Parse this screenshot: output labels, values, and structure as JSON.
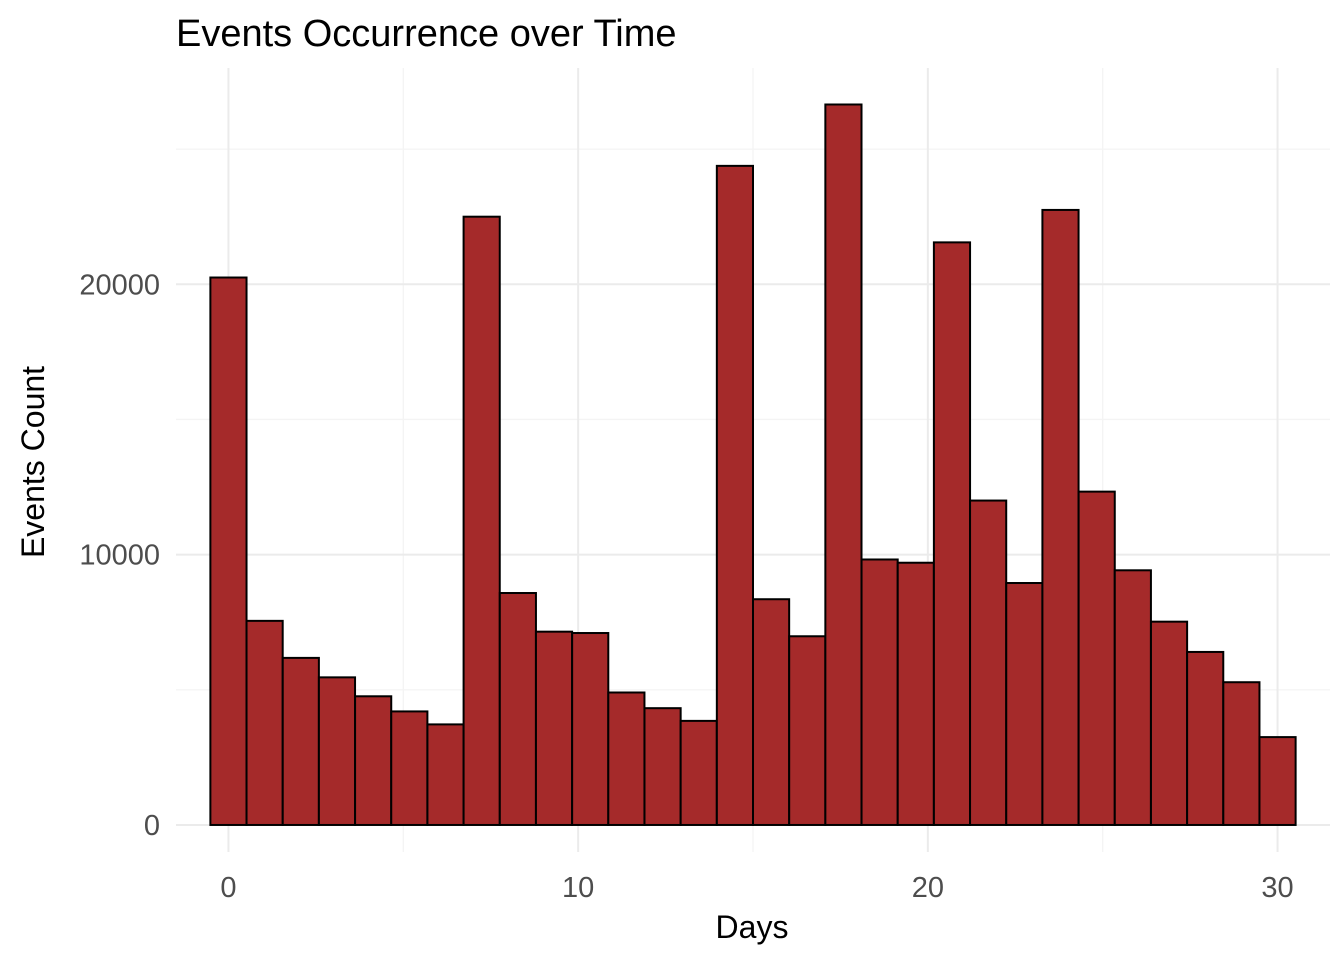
{
  "chart_data": {
    "type": "bar",
    "title": "Events Occurrence over Time",
    "xlabel": "Days",
    "ylabel": "Events Count",
    "bar_color": "#a52a2a",
    "bar_outline": "#000000",
    "bin_width": 1.034,
    "x": [
      0,
      1.034,
      2.069,
      3.103,
      4.138,
      5.172,
      6.207,
      7.241,
      8.276,
      9.31,
      10.345,
      11.379,
      12.414,
      13.448,
      14.483,
      15.517,
      16.552,
      17.586,
      18.621,
      19.655,
      20.69,
      21.724,
      22.759,
      23.793,
      24.828,
      25.862,
      26.897,
      27.931,
      28.966,
      30
    ],
    "values": [
      20250,
      7550,
      6180,
      5460,
      4760,
      4200,
      3720,
      22500,
      8580,
      7150,
      7100,
      4900,
      4320,
      3850,
      24380,
      8350,
      6980,
      26650,
      9820,
      9700,
      21550,
      12000,
      8950,
      22750,
      12330,
      9420,
      7520,
      6400,
      5280,
      3250
    ],
    "xlim": [
      -1.5,
      31.5
    ],
    "ylim": [
      -1000,
      28000
    ],
    "x_ticks": [
      0,
      10,
      20,
      30
    ],
    "y_ticks": [
      0,
      10000,
      20000
    ],
    "x_minor": [
      5,
      15,
      25
    ],
    "y_minor": [
      5000,
      15000,
      25000
    ],
    "grid": true,
    "legend": "none"
  }
}
